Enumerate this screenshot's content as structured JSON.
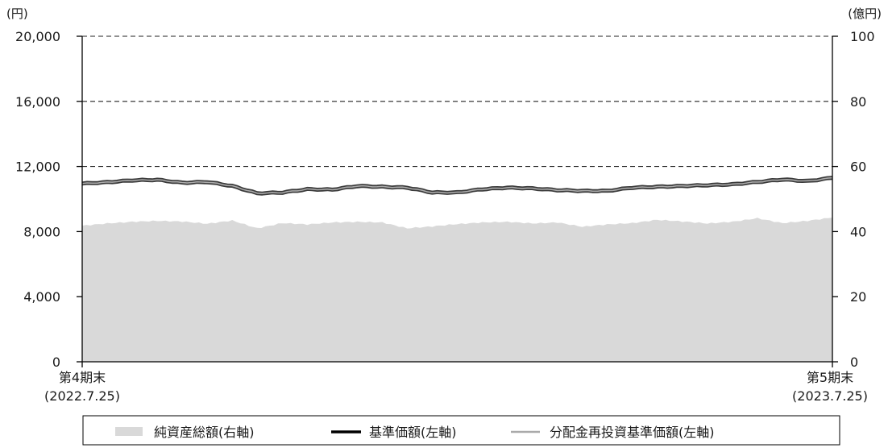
{
  "chart_data": {
    "type": "line",
    "title": "",
    "y_left": {
      "unit": "(円)",
      "ylim": [
        0,
        20000
      ],
      "ticks": [
        "20,000",
        "16,000",
        "12,000",
        "8,000",
        "4,000",
        "0"
      ]
    },
    "y_right": {
      "unit": "(億円)",
      "ylim": [
        0,
        100
      ],
      "ticks": [
        "100",
        "80",
        "60",
        "40",
        "20",
        "0"
      ]
    },
    "grid": "horizontal dashed at 12,000 / 16,000 / 20,000",
    "x_labels": {
      "start": {
        "line1": "第4期末",
        "line2": "(2022.7.25)"
      },
      "end": {
        "line1": "第5期末",
        "line2": "(2023.7.25)"
      }
    },
    "legend": {
      "placement": "bottom",
      "items": [
        {
          "label": "純資産総額(右軸)",
          "color": "#d9d9d9"
        },
        {
          "label": "基準価額(左軸)",
          "color": "#000000"
        },
        {
          "label": "分配金再投資基準価額(左軸)",
          "color": "#aaaaaa"
        }
      ]
    },
    "series": [
      {
        "name": "純資産総額(右軸)",
        "axis": "right",
        "kind": "area",
        "color": "#d9d9d9",
        "values": [
          41.8,
          42.5,
          43.0,
          43.3,
          43.1,
          42.4,
          43.4,
          41.0,
          42.6,
          42.2,
          42.8,
          43.0,
          42.8,
          41.0,
          41.6,
          42.3,
          42.8,
          43.0,
          42.5,
          42.8,
          41.5,
          42.2,
          42.6,
          43.6,
          43.1,
          42.5,
          43.0,
          44.1,
          42.6,
          43.3,
          44.3
        ]
      },
      {
        "name": "基準価額(左軸)",
        "axis": "left",
        "kind": "line",
        "color": "#000000",
        "values": [
          10950,
          11030,
          11150,
          11180,
          11000,
          11050,
          10800,
          10350,
          10400,
          10600,
          10580,
          10800,
          10750,
          10700,
          10400,
          10400,
          10600,
          10700,
          10650,
          10550,
          10500,
          10500,
          10700,
          10750,
          10800,
          10850,
          10900,
          11050,
          11200,
          11100,
          11300
        ]
      },
      {
        "name": "分配金再投資基準価額(左軸)",
        "axis": "left",
        "kind": "line",
        "color": "#aaaaaa",
        "values": [
          10950,
          11030,
          11150,
          11180,
          11000,
          11050,
          10800,
          10350,
          10400,
          10600,
          10580,
          10800,
          10750,
          10700,
          10400,
          10400,
          10600,
          10700,
          10650,
          10550,
          10500,
          10500,
          10700,
          10750,
          10800,
          10850,
          10900,
          11050,
          11200,
          11100,
          11300
        ]
      }
    ]
  }
}
